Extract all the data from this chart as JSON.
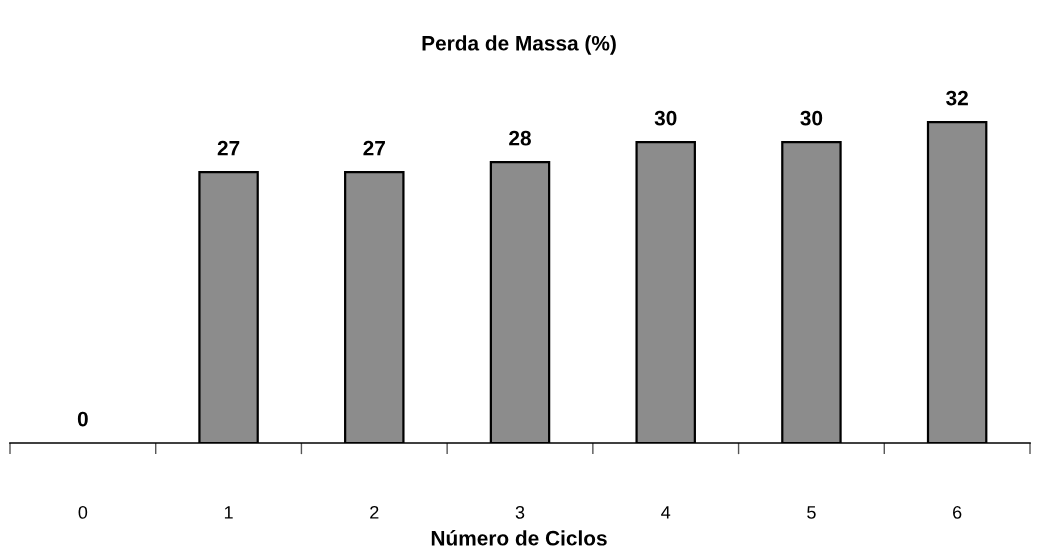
{
  "chart_data": {
    "type": "bar",
    "title": "Perda de Massa (%)",
    "xlabel": "Número de Ciclos",
    "categories": [
      "0",
      "1",
      "2",
      "3",
      "4",
      "5",
      "6"
    ],
    "values": [
      0,
      27,
      27,
      28,
      30,
      30,
      32
    ],
    "color": "#8c8c8c",
    "data_labels": true,
    "grid": false,
    "legend": false
  }
}
